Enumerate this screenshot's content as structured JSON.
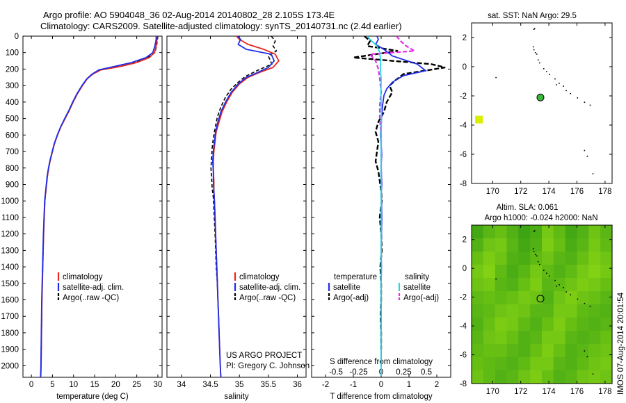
{
  "title": {
    "line1": "Argo profile: AO 5904048_36 02-Aug-2014 20140802_28 2.105S 173.4E",
    "line2": "Climatology: CARS2009. Satellite-adjusted climatology: synTS_20140731.nc (2.4d earlier)"
  },
  "side_label": "IMOS 07-Aug-2014 20:01:54",
  "project_credit": {
    "line1": "US ARGO PROJECT",
    "line2": "PI: Gregory C. Johnson"
  },
  "colors": {
    "climatology": "#e8261c",
    "satellite": "#1f2ee6",
    "argo": "#000000",
    "satellite_diff": "#24d6e6",
    "argo_salinity_diff": "#e62de6",
    "sst_box": "#d8f000",
    "float_marker": "#3cb83c"
  },
  "chart_data": [
    {
      "type": "line",
      "panel": "temperature",
      "xlabel": "temperature (deg C)",
      "ylabel": "",
      "xlim": [
        -2,
        31
      ],
      "ylim": [
        2070,
        0
      ],
      "xticks": [
        0,
        5,
        10,
        15,
        20,
        25,
        30
      ],
      "yticks": [
        0,
        100,
        200,
        300,
        400,
        500,
        600,
        700,
        800,
        900,
        1000,
        1100,
        1200,
        1300,
        1400,
        1500,
        1600,
        1700,
        1800,
        1900,
        2000
      ],
      "legend": {
        "position": "lower-left",
        "entries": [
          "climatology",
          "satellite-adj. clim.",
          "Argo(..raw -QC)"
        ]
      },
      "series": [
        {
          "name": "climatology",
          "color": "#e8261c",
          "x": [
            29.8,
            29.8,
            29.6,
            29.2,
            28,
            25,
            21,
            16.5,
            14.6,
            13.2,
            12.1,
            10.9,
            9.9,
            9.0,
            8.0,
            7.0,
            6.2,
            5.5,
            5.0,
            4.5,
            4.1,
            3.8,
            3.6,
            3.4,
            3.2,
            3.05,
            2.9,
            2.8,
            2.7,
            2.6,
            2.5,
            2.45,
            2.4,
            2.35,
            2.3,
            2.25,
            2.2
          ],
          "y": [
            0,
            20,
            60,
            100,
            130,
            160,
            185,
            205,
            230,
            260,
            300,
            350,
            400,
            450,
            500,
            550,
            600,
            650,
            700,
            750,
            800,
            850,
            900,
            950,
            1000,
            1100,
            1200,
            1300,
            1400,
            1500,
            1600,
            1700,
            1800,
            1900,
            2000,
            2050,
            2070
          ]
        },
        {
          "name": "satellite-adj. clim.",
          "color": "#1f2ee6",
          "x": [
            29.6,
            29.6,
            29.3,
            28.8,
            27.2,
            23.8,
            19.5,
            16.0,
            14.4,
            13.1,
            12.0,
            10.8,
            9.8,
            8.9,
            7.9,
            6.95,
            6.15,
            5.45,
            4.95,
            4.45,
            4.05,
            3.75,
            3.55,
            3.35,
            3.15,
            3.0,
            2.85,
            2.75,
            2.65,
            2.55,
            2.45,
            2.4,
            2.35,
            2.3,
            2.25,
            2.2,
            2.15
          ],
          "y": [
            0,
            20,
            60,
            100,
            130,
            160,
            185,
            205,
            230,
            260,
            300,
            350,
            400,
            450,
            500,
            550,
            600,
            650,
            700,
            750,
            800,
            850,
            900,
            950,
            1000,
            1100,
            1200,
            1300,
            1400,
            1500,
            1600,
            1700,
            1800,
            1900,
            2000,
            2050,
            2070
          ]
        },
        {
          "name": "Argo(..raw -QC)",
          "color": "#000000",
          "x": [
            29.9,
            29.9,
            29.7,
            29.3,
            27.6,
            24.2,
            20.0,
            16.2,
            14.5,
            13.2,
            12.1,
            10.9,
            9.9,
            9.0,
            8.0,
            7.0,
            6.2,
            5.5,
            5.0,
            4.5,
            4.1,
            3.8,
            3.6,
            3.4,
            3.2,
            3.05,
            2.9,
            2.8,
            2.7,
            2.6,
            2.5,
            2.45,
            2.4,
            2.35,
            2.3
          ],
          "y": [
            0,
            20,
            60,
            100,
            130,
            160,
            185,
            205,
            230,
            260,
            300,
            350,
            400,
            450,
            500,
            550,
            600,
            650,
            700,
            750,
            800,
            850,
            900,
            950,
            1000,
            1100,
            1200,
            1300,
            1400,
            1500,
            1600,
            1700,
            1800,
            1900,
            2000
          ]
        }
      ]
    },
    {
      "type": "line",
      "panel": "salinity",
      "xlabel": "salinity",
      "xlim": [
        33.75,
        36.15
      ],
      "ylim": [
        2070,
        0
      ],
      "xticks": [
        34,
        34.5,
        35,
        35.5,
        36
      ],
      "legend": {
        "position": "lower-left",
        "entries": [
          "climatology",
          "satellite-adj. clim.",
          "Argo(..raw -QC)"
        ]
      },
      "series": [
        {
          "name": "climatology",
          "color": "#e8261c",
          "x": [
            34.95,
            35.0,
            35.15,
            35.42,
            35.62,
            35.68,
            35.58,
            35.35,
            35.15,
            35.0,
            34.88,
            34.78,
            34.7,
            34.65,
            34.6,
            34.58,
            34.56,
            34.55,
            34.55,
            34.56,
            34.56,
            34.57,
            34.58,
            34.59,
            34.6,
            34.61,
            34.62,
            34.63,
            34.64,
            34.65,
            34.66,
            34.67,
            34.68
          ],
          "y": [
            0,
            20,
            50,
            80,
            110,
            150,
            190,
            220,
            250,
            290,
            340,
            400,
            460,
            520,
            580,
            640,
            700,
            760,
            820,
            880,
            940,
            1000,
            1100,
            1200,
            1300,
            1400,
            1500,
            1600,
            1700,
            1800,
            1900,
            2000,
            2070
          ]
        },
        {
          "name": "satellite-adj. clim.",
          "color": "#1f2ee6",
          "x": [
            34.97,
            35.02,
            34.98,
            35.12,
            35.55,
            35.6,
            35.5,
            35.32,
            35.12,
            34.98,
            34.86,
            34.76,
            34.68,
            34.63,
            34.59,
            34.57,
            34.55,
            34.54,
            34.55,
            34.55,
            34.56,
            34.57,
            34.58,
            34.59,
            34.6,
            34.61,
            34.62,
            34.63,
            34.64,
            34.65,
            34.66,
            34.67,
            34.68
          ],
          "y": [
            0,
            20,
            50,
            80,
            110,
            150,
            190,
            220,
            250,
            290,
            340,
            400,
            460,
            520,
            580,
            640,
            700,
            760,
            820,
            880,
            940,
            1000,
            1100,
            1200,
            1300,
            1400,
            1500,
            1600,
            1700,
            1800,
            1900,
            2000,
            2070
          ]
        },
        {
          "name": "Argo(..raw -QC)",
          "color": "#000000",
          "x": [
            35.55,
            35.62,
            35.58,
            35.64,
            35.5,
            35.56,
            35.3,
            35.1,
            34.98,
            34.86,
            34.76,
            34.68,
            34.62,
            34.58,
            34.55,
            34.53,
            34.52,
            34.51,
            34.52,
            34.53,
            34.55,
            34.56,
            34.58,
            34.59,
            34.6,
            34.62,
            34.63,
            34.64,
            34.65
          ],
          "y": [
            0,
            30,
            60,
            90,
            120,
            170,
            210,
            245,
            280,
            320,
            370,
            430,
            490,
            560,
            620,
            680,
            740,
            800,
            860,
            920,
            980,
            1050,
            1200,
            1300,
            1400,
            1500,
            1600,
            1700,
            1800
          ]
        }
      ]
    },
    {
      "type": "line",
      "panel": "differences",
      "xlabel": "T difference from climatology",
      "xlabel_top": "S difference from climatology",
      "xlim": [
        -2.5,
        2.5
      ],
      "ylim": [
        2070,
        0
      ],
      "xticks": [
        -2,
        -1,
        0,
        1,
        2
      ],
      "s_ticks": [
        "-0.5",
        "-0.25",
        "0",
        "0.25",
        "0.5"
      ],
      "legend": {
        "position": "lower-center",
        "groups": [
          "temperature",
          "salinity"
        ],
        "entries": [
          "satellite",
          "Argo(-adj)",
          "satellite",
          "Argo(-adj)"
        ]
      },
      "series": [
        {
          "name": "temperature satellite",
          "color": "#1f2ee6",
          "x": [
            -0.15,
            -0.1,
            -0.2,
            0.1,
            0.4,
            1.3,
            1.6,
            0.8,
            0.4,
            0.2,
            0.1,
            0.05,
            0.02,
            0,
            -0.02,
            0,
            0.02,
            0,
            0.01,
            0.02,
            0,
            0.01,
            0.02,
            0.01,
            0,
            0.01,
            0,
            0,
            0,
            0,
            0
          ],
          "y": [
            0,
            20,
            50,
            80,
            120,
            170,
            210,
            240,
            280,
            320,
            360,
            420,
            480,
            540,
            600,
            660,
            720,
            780,
            840,
            900,
            960,
            1000,
            1100,
            1200,
            1300,
            1400,
            1500,
            1600,
            1700,
            1800,
            2000
          ]
        },
        {
          "name": "temperature Argo(-adj)",
          "color": "#000000",
          "x": [
            -0.6,
            -0.4,
            -0.5,
            0.6,
            -1.0,
            1.8,
            2.3,
            0.8,
            0.5,
            0.3,
            0.4,
            0.2,
            0.1,
            -0.1,
            -0.2,
            -0.1,
            -0.15,
            -0.2,
            -0.1,
            -0.05,
            0,
            0.02,
            -0.05,
            0,
            0.02,
            -0.03,
            0,
            0,
            -0.02,
            0,
            0
          ],
          "y": [
            0,
            30,
            60,
            90,
            130,
            170,
            190,
            230,
            270,
            300,
            340,
            400,
            460,
            520,
            580,
            640,
            700,
            760,
            820,
            880,
            940,
            1000,
            1100,
            1200,
            1300,
            1400,
            1500,
            1600,
            1700,
            1800,
            1900
          ]
        },
        {
          "name": "salinity satellite",
          "color": "#24d6e6",
          "x": [
            -0.5,
            -0.4,
            -0.15,
            -0.05,
            -0.02,
            -0.03,
            0.0,
            -0.01,
            0.0,
            0.01,
            0.0,
            0.0,
            0.0,
            0.0,
            0.0,
            0.0,
            0.0,
            0.0,
            0.0,
            0.0,
            0.0,
            0.0
          ],
          "y": [
            0,
            20,
            60,
            100,
            150,
            200,
            260,
            340,
            420,
            500,
            600,
            700,
            800,
            900,
            1000,
            1200,
            1400,
            1600,
            1800,
            1900,
            2000,
            2060
          ]
        },
        {
          "name": "salinity Argo(-adj)",
          "color": "#e62de6",
          "x": [
            0.55,
            0.7,
            0.9,
            1.2,
            -0.4,
            -0.2,
            -0.1,
            -0.05,
            0,
            -0.05,
            -0.05,
            0,
            0,
            0,
            0
          ],
          "y": [
            0,
            30,
            60,
            90,
            110,
            150,
            200,
            260,
            340,
            420,
            500,
            600,
            700,
            800,
            900
          ]
        }
      ]
    },
    {
      "type": "scatter",
      "panel": "sst-map",
      "title": "sat. SST: NaN Argo: 29.5",
      "xlim": [
        168.5,
        178.5
      ],
      "ylim": [
        -8,
        3
      ],
      "xticks": [
        170,
        172,
        174,
        176,
        178
      ],
      "yticks": [
        -8,
        -6,
        -4,
        -2,
        0,
        2
      ],
      "float_position": [
        173.4,
        -2.105
      ],
      "sst_box": [
        169,
        -3.6
      ]
    },
    {
      "type": "heatmap",
      "panel": "sla-map",
      "title_line1": "Altim. SLA: 0.061",
      "title_line2": "Argo h1000: -0.024 h2000: NaN",
      "xlim": [
        168.5,
        178.5
      ],
      "ylim": [
        -8,
        3
      ],
      "xticks": [
        170,
        172,
        174,
        176,
        178
      ],
      "yticks": [
        -8,
        -6,
        -4,
        -2,
        0,
        2
      ],
      "float_position": [
        173.4,
        -2.105
      ]
    }
  ],
  "islands": [
    [
      172.9,
      2.6
    ],
    [
      172.95,
      2.65
    ],
    [
      172.85,
      1.4
    ],
    [
      172.9,
      1.2
    ],
    [
      173.0,
      1.0
    ],
    [
      173.1,
      0.9
    ],
    [
      173.2,
      0.5
    ],
    [
      173.3,
      0.3
    ],
    [
      173.6,
      -0.1
    ],
    [
      173.8,
      -0.3
    ],
    [
      174.0,
      -0.5
    ],
    [
      174.4,
      -0.8
    ],
    [
      174.7,
      -1.1
    ],
    [
      175.0,
      -1.3
    ],
    [
      175.5,
      -1.8
    ],
    [
      176.0,
      -2.1
    ],
    [
      176.5,
      -2.4
    ],
    [
      176.9,
      -2.6
    ],
    [
      170.2,
      -0.7
    ],
    [
      176.5,
      -5.7
    ],
    [
      176.7,
      -6.1
    ],
    [
      177.1,
      -7.3
    ],
    [
      174.5,
      -1.2
    ],
    [
      175.2,
      -1.6
    ]
  ],
  "sla_field": [
    [
      0.2,
      0.35,
      0.45,
      0.3,
      0.15,
      0.25,
      0.55,
      0.4,
      0.2,
      0.3,
      0.5,
      0.35
    ],
    [
      0.3,
      0.5,
      0.55,
      0.35,
      0.2,
      0.3,
      0.6,
      0.45,
      0.25,
      0.35,
      0.55,
      0.4
    ],
    [
      0.45,
      0.6,
      0.5,
      0.3,
      0.25,
      0.4,
      0.5,
      0.35,
      0.3,
      0.45,
      0.6,
      0.5
    ],
    [
      0.55,
      0.65,
      0.4,
      0.25,
      0.35,
      0.55,
      0.4,
      0.3,
      0.4,
      0.55,
      0.65,
      0.55
    ],
    [
      0.5,
      0.55,
      0.35,
      0.3,
      0.45,
      0.6,
      0.35,
      0.4,
      0.5,
      0.6,
      0.55,
      0.45
    ],
    [
      0.4,
      0.45,
      0.4,
      0.45,
      0.55,
      0.5,
      0.3,
      0.5,
      0.6,
      0.5,
      0.45,
      0.35
    ],
    [
      0.35,
      0.4,
      0.5,
      0.55,
      0.5,
      0.35,
      0.35,
      0.55,
      0.55,
      0.4,
      0.35,
      0.3
    ],
    [
      0.3,
      0.45,
      0.6,
      0.55,
      0.4,
      0.3,
      0.45,
      0.6,
      0.45,
      0.35,
      0.3,
      0.35
    ],
    [
      0.35,
      0.5,
      0.55,
      0.45,
      0.3,
      0.35,
      0.55,
      0.55,
      0.35,
      0.3,
      0.35,
      0.45
    ],
    [
      0.4,
      0.45,
      0.45,
      0.35,
      0.3,
      0.45,
      0.6,
      0.45,
      0.3,
      0.35,
      0.45,
      0.5
    ],
    [
      0.45,
      0.4,
      0.35,
      0.3,
      0.4,
      0.55,
      0.55,
      0.35,
      0.3,
      0.4,
      0.5,
      0.55
    ],
    [
      0.5,
      0.4,
      0.3,
      0.35,
      0.5,
      0.6,
      0.45,
      0.3,
      0.35,
      0.5,
      0.55,
      0.5
    ]
  ]
}
